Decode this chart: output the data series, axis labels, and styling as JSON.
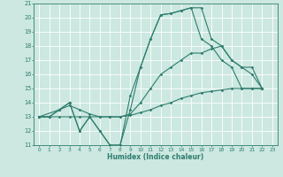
{
  "xlabel": "Humidex (Indice chaleur)",
  "bg_color": "#cce8e0",
  "grid_color": "#ffffff",
  "line_color": "#2e7d6e",
  "ylim": [
    11,
    21
  ],
  "xlim": [
    -0.5,
    23.5
  ],
  "yticks": [
    11,
    12,
    13,
    14,
    15,
    16,
    17,
    18,
    19,
    20,
    21
  ],
  "xticks": [
    0,
    1,
    2,
    3,
    4,
    5,
    6,
    7,
    8,
    9,
    10,
    11,
    12,
    13,
    14,
    15,
    16,
    17,
    18,
    19,
    20,
    21,
    22,
    23
  ],
  "line1_x": [
    0,
    1,
    2,
    3,
    4,
    5,
    6,
    7,
    8,
    9,
    10,
    11,
    12,
    13,
    14,
    15,
    16,
    17,
    18,
    19,
    20,
    21,
    22
  ],
  "line1_y": [
    13,
    13,
    13.5,
    14,
    12,
    13,
    12,
    11,
    11,
    14.5,
    16.5,
    18.5,
    20.2,
    20.3,
    20.5,
    20.7,
    18.5,
    18,
    17,
    16.5,
    15,
    15,
    15
  ],
  "line2_x": [
    0,
    2,
    3,
    4,
    5,
    6,
    7,
    8,
    9,
    10,
    11,
    12,
    13,
    14,
    15,
    16,
    17,
    18,
    19,
    20,
    21,
    22
  ],
  "line2_y": [
    13,
    13.5,
    14,
    12,
    13,
    12,
    11,
    11,
    13.5,
    16.5,
    18.5,
    20.2,
    20.3,
    20.5,
    20.7,
    20.7,
    18.5,
    18,
    17,
    16.5,
    16,
    15
  ],
  "line3_x": [
    0,
    1,
    2,
    3,
    4,
    5,
    6,
    7,
    8,
    9,
    10,
    11,
    12,
    13,
    14,
    15,
    16,
    17,
    18,
    19,
    20,
    21,
    22
  ],
  "line3_y": [
    13,
    13,
    13.5,
    13.8,
    13.5,
    13.2,
    13,
    13,
    13,
    13.2,
    14,
    15,
    16,
    16.5,
    17,
    17.5,
    17.5,
    17.8,
    18,
    17,
    16.5,
    16.5,
    15
  ],
  "line4_x": [
    0,
    1,
    2,
    3,
    4,
    5,
    6,
    7,
    8,
    9,
    10,
    11,
    12,
    13,
    14,
    15,
    16,
    17,
    18,
    19,
    20,
    21,
    22
  ],
  "line4_y": [
    13,
    13,
    13,
    13,
    13,
    13,
    13,
    13,
    13,
    13.1,
    13.3,
    13.5,
    13.8,
    14,
    14.3,
    14.5,
    14.7,
    14.8,
    14.9,
    15,
    15,
    15,
    15
  ]
}
